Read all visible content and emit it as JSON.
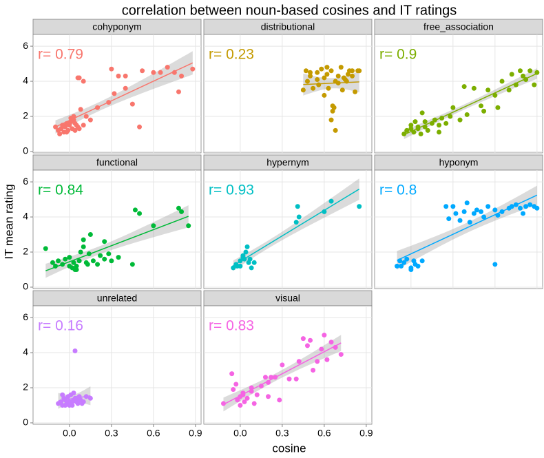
{
  "chart_data": {
    "type": "scatter",
    "title": "correlation between noun-based cosines and IT ratings",
    "xlabel": "cosine",
    "ylabel": "IT mean rating",
    "xlim": [
      -0.26,
      0.94
    ],
    "ylim": [
      -0.08,
      6.67
    ],
    "xticks": [
      {
        "value": 0,
        "label": "0.0"
      },
      0.3,
      0.6,
      0.9
    ],
    "yticks": [
      0,
      2,
      4,
      6
    ],
    "grid": true,
    "facets": [
      {
        "name": "cohyponym",
        "color": "#F8766D",
        "label": "r= 0.79",
        "x": [
          -0.1,
          -0.08,
          -0.06,
          -0.05,
          -0.04,
          -0.03,
          -0.02,
          -0.01,
          0,
          0.01,
          0.02,
          0.03,
          0.04,
          0.05,
          0.06,
          -0.07,
          -0.02,
          0.01,
          0.04,
          0.07,
          0.03,
          0.0,
          0.08,
          0.1,
          0.06,
          0.1,
          0.07,
          0.12,
          0.15,
          0.2,
          0.28,
          0.3,
          0.32,
          0.35,
          0.4,
          0.4,
          0.45,
          0.5,
          0.52,
          0.6,
          0.65,
          0.7,
          0.75,
          0.78,
          0.8,
          0.88
        ],
        "y": [
          1.4,
          1.2,
          1.3,
          1.5,
          1.1,
          1.4,
          1.6,
          1.2,
          1.5,
          1.7,
          1.3,
          1.8,
          1.6,
          1.5,
          1.4,
          1.0,
          1.1,
          1.9,
          1.2,
          1.3,
          2.0,
          1.6,
          2.4,
          1.5,
          4.2,
          4.0,
          4.2,
          2.0,
          1.8,
          2.5,
          2.8,
          4.7,
          3.3,
          4.3,
          4.3,
          3.6,
          2.7,
          1.4,
          4.6,
          4.5,
          4.5,
          4.8,
          4.5,
          3.4,
          4.3,
          4.7
        ]
      },
      {
        "name": "distributional",
        "color": "#C49A00",
        "label": "r= 0.23",
        "x": [
          0.45,
          0.47,
          0.48,
          0.5,
          0.52,
          0.55,
          0.56,
          0.58,
          0.6,
          0.62,
          0.63,
          0.65,
          0.66,
          0.67,
          0.68,
          0.7,
          0.72,
          0.73,
          0.75,
          0.77,
          0.78,
          0.8,
          0.82,
          0.84,
          0.5,
          0.6,
          0.65,
          0.66,
          0.68,
          0.7,
          0.55,
          0.74,
          0.76,
          0.8,
          0.85,
          0.62
        ],
        "y": [
          3.5,
          4.6,
          4.0,
          4.3,
          3.6,
          4.5,
          3.8,
          4.7,
          4.2,
          4.4,
          3.6,
          4.6,
          2.6,
          2.5,
          1.2,
          4.3,
          4.8,
          3.5,
          4.1,
          4.4,
          4.6,
          4.3,
          3.4,
          4.6,
          4.5,
          3.2,
          1.8,
          2.3,
          4.0,
          3.9,
          4.1,
          4.2,
          4.0,
          4.6,
          4.6,
          4.8
        ]
      },
      {
        "name": "free_association",
        "color": "#7CAE00",
        "label": "r= 0.9",
        "x": [
          -0.05,
          -0.03,
          0,
          0.02,
          0.03,
          0.05,
          0.07,
          0.08,
          0.1,
          0.12,
          0.15,
          0.17,
          0.2,
          0.22,
          0.25,
          0.28,
          0.3,
          0.35,
          0.38,
          0.4,
          0.45,
          0.5,
          0.52,
          0.55,
          0.6,
          0.62,
          0.65,
          0.7,
          0.72,
          0.75,
          0.78,
          0.8,
          0.82,
          0.85,
          0.88,
          0.9,
          0.0,
          0.05,
          0.1,
          0.2
        ],
        "y": [
          1.0,
          1.2,
          1.5,
          1.1,
          1.7,
          1.3,
          1.0,
          2.2,
          1.4,
          1.2,
          1.6,
          1.8,
          1.5,
          1.9,
          1.6,
          2.0,
          2.5,
          1.8,
          3.7,
          2.1,
          3.6,
          2.6,
          2.3,
          3.5,
          3.2,
          2.5,
          4.0,
          3.5,
          4.4,
          3.8,
          4.6,
          4.3,
          4.1,
          4.6,
          3.8,
          4.5,
          1.3,
          1.4,
          1.7,
          1.1
        ]
      },
      {
        "name": "functional",
        "color": "#00BA38",
        "label": "r= 0.84",
        "x": [
          -0.17,
          -0.1,
          -0.08,
          -0.05,
          -0.03,
          0,
          0.02,
          0.03,
          0.05,
          0.07,
          0.08,
          0.1,
          0.1,
          0.12,
          0.13,
          0.15,
          0.17,
          0.2,
          0.22,
          0.25,
          0.28,
          0.3,
          0.35,
          0.45,
          0.47,
          0.5,
          0.6,
          0.78,
          0.8,
          0.85,
          -0.12,
          0.0,
          0.05,
          0.04,
          0.14,
          0.25
        ],
        "y": [
          2.2,
          1.2,
          1.5,
          1.3,
          1.6,
          1.2,
          1.1,
          1.4,
          1.0,
          1.5,
          2.0,
          2.7,
          2.3,
          1.4,
          1.3,
          3.0,
          1.5,
          1.3,
          1.8,
          1.6,
          1.9,
          1.5,
          1.7,
          1.3,
          4.4,
          4.2,
          3.5,
          4.5,
          4.3,
          3.5,
          1.4,
          1.7,
          1.2,
          1.0,
          1.9,
          2.6
        ]
      },
      {
        "name": "hypernym",
        "color": "#00BFC4",
        "label": "r= 0.93",
        "x": [
          -0.05,
          -0.03,
          -0.02,
          0,
          0.02,
          0.03,
          0.04,
          0.05,
          0.06,
          0.07,
          0.08,
          0.1,
          0.0,
          0.02,
          0.4,
          0.41,
          0.42,
          0.6,
          0.65,
          0.85
        ],
        "y": [
          1.1,
          1.3,
          1.2,
          1.5,
          1.7,
          1.6,
          2.0,
          2.3,
          1.4,
          1.6,
          1.1,
          1.4,
          1.2,
          1.8,
          3.7,
          4.6,
          4.0,
          4.3,
          4.9,
          4.6
        ]
      },
      {
        "name": "hyponym",
        "color": "#00A9FF",
        "label": "r= 0.8",
        "x": [
          -0.1,
          -0.08,
          -0.07,
          -0.05,
          0,
          0.02,
          0.03,
          0.05,
          0.08,
          0.25,
          0.27,
          0.3,
          0.32,
          0.35,
          0.38,
          0.4,
          0.42,
          0.45,
          0.47,
          0.5,
          0.52,
          0.55,
          0.6,
          0.62,
          0.65,
          0.7,
          0.72,
          0.75,
          0.78,
          0.8,
          0.82,
          0.85,
          0.88,
          0.9,
          0.6,
          0.0,
          -0.03
        ],
        "y": [
          1.2,
          1.5,
          1.2,
          1.4,
          1.1,
          1.5,
          1.3,
          1.2,
          1.5,
          4.6,
          3.9,
          4.6,
          4.2,
          3.8,
          4.3,
          4.8,
          3.7,
          4.2,
          4.4,
          4.3,
          4.0,
          4.6,
          1.3,
          4.1,
          4.3,
          4.5,
          4.6,
          4.7,
          4.5,
          4.2,
          4.6,
          4.7,
          4.6,
          4.5,
          4.4,
          1.0,
          1.6
        ]
      },
      {
        "name": "unrelated",
        "color": "#C77CFF",
        "label": "r= 0.16",
        "x": [
          -0.08,
          -0.06,
          -0.05,
          -0.04,
          -0.03,
          -0.02,
          -0.01,
          0,
          0.01,
          0.02,
          0.03,
          0.04,
          0.05,
          0.06,
          0.07,
          0.08,
          0.1,
          0.12,
          0.15,
          -0.05,
          0.0,
          0.03,
          0.06,
          0.09,
          0.04,
          0.02,
          -0.03,
          0.05
        ],
        "y": [
          1.1,
          1.2,
          1.0,
          1.4,
          1.3,
          1.1,
          1.5,
          1.2,
          1.6,
          1.0,
          1.3,
          1.4,
          1.2,
          1.1,
          1.5,
          1.3,
          1.2,
          1.5,
          1.4,
          1.6,
          1.0,
          1.7,
          1.3,
          1.1,
          4.1,
          1.2,
          1.0,
          1.4
        ]
      },
      {
        "name": "visual",
        "color": "#F564E3",
        "label": "r= 0.83",
        "x": [
          -0.12,
          -0.06,
          -0.05,
          -0.03,
          -0.02,
          0,
          0,
          0.02,
          0.03,
          0.05,
          0.08,
          0.1,
          0.12,
          0.15,
          0.18,
          0.2,
          0.22,
          0.25,
          0.28,
          0.3,
          0.35,
          0.4,
          0.42,
          0.45,
          0.48,
          0.5,
          0.52,
          0.55,
          0.58,
          0.6,
          0.62,
          0.65,
          0.68,
          0.72,
          0.2,
          0.02,
          0.08
        ],
        "y": [
          1.1,
          2.8,
          1.9,
          2.2,
          1.3,
          1.5,
          1.0,
          1.7,
          1.2,
          1.4,
          1.8,
          1.1,
          1.6,
          2.1,
          2.6,
          1.5,
          2.6,
          2.6,
          1.3,
          3.3,
          2.5,
          2.5,
          3.5,
          4.8,
          4.4,
          4.7,
          3.0,
          3.5,
          4.2,
          5.0,
          3.6,
          4.6,
          4.3,
          3.9,
          2.3,
          1.6,
          2.0
        ]
      }
    ]
  }
}
